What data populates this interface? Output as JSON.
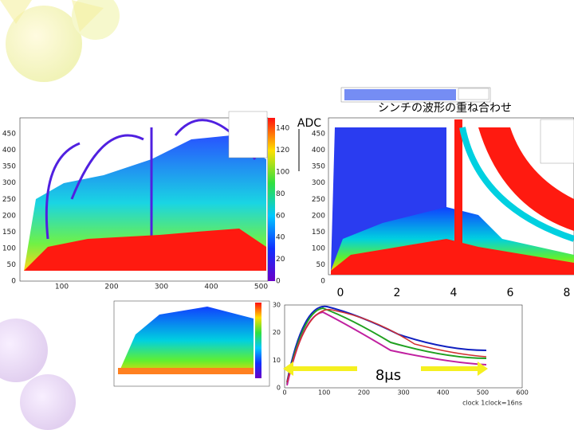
{
  "slide": {
    "title": "シンチの波形の重ね合わせ",
    "adc_label": "ADC",
    "duration_label": "8μs",
    "time_ticks": [
      0,
      2,
      4,
      6,
      8
    ],
    "left_plot": {
      "yticks": [
        0,
        50,
        100,
        150,
        200,
        250,
        300,
        350,
        400,
        450
      ],
      "xticks": [
        100,
        200,
        300,
        400,
        500
      ],
      "colorbar_ticks": [
        0,
        20,
        40,
        60,
        80,
        100,
        120,
        140
      ]
    },
    "right_plot": {
      "yticks": [
        0,
        50,
        100,
        150,
        200,
        250,
        300,
        350,
        400,
        450
      ]
    },
    "waveform_plot": {
      "yticks": [
        0,
        10,
        20,
        30
      ],
      "xticks": [
        0,
        100,
        200,
        300,
        400,
        500,
        600
      ],
      "x_label": "clock 1clock=16ns"
    }
  }
}
